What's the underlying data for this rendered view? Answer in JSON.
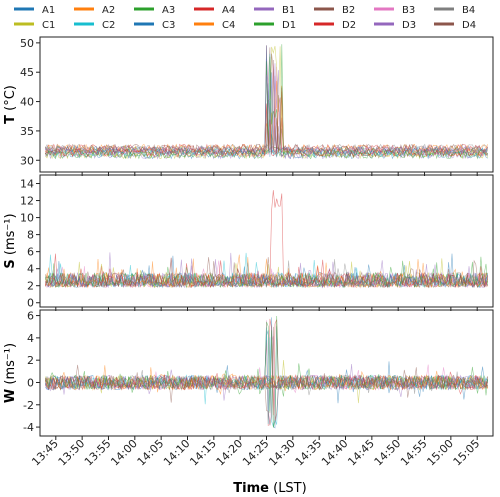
{
  "legend": {
    "entries": [
      {
        "name": "A1",
        "color": "#1f77b4"
      },
      {
        "name": "A2",
        "color": "#ff7f0e"
      },
      {
        "name": "A3",
        "color": "#2ca02c"
      },
      {
        "name": "A4",
        "color": "#d62728"
      },
      {
        "name": "B1",
        "color": "#9467bd"
      },
      {
        "name": "B2",
        "color": "#8c564b"
      },
      {
        "name": "B3",
        "color": "#e377c2"
      },
      {
        "name": "B4",
        "color": "#7f7f7f"
      },
      {
        "name": "C1",
        "color": "#bcbd22"
      },
      {
        "name": "C2",
        "color": "#17becf"
      },
      {
        "name": "C3",
        "color": "#1f77b4"
      },
      {
        "name": "C4",
        "color": "#ff7f0e"
      },
      {
        "name": "D1",
        "color": "#2ca02c"
      },
      {
        "name": "D2",
        "color": "#d62728"
      },
      {
        "name": "D3",
        "color": "#9467bd"
      },
      {
        "name": "D4",
        "color": "#8c564b"
      }
    ],
    "placement": "top"
  },
  "xaxis": {
    "title_bold": "Time",
    "title_rest": " (LST)",
    "ticks": [
      "13:45",
      "13:50",
      "13:55",
      "14:00",
      "14:05",
      "14:10",
      "14:15",
      "14:20",
      "14:25",
      "14:30",
      "14:35",
      "14:40",
      "14:45",
      "14:50",
      "14:55",
      "15:00",
      "15:05"
    ]
  },
  "chart_data": [
    {
      "type": "line",
      "panel": "T",
      "ylabel_bold": "T",
      "ylabel_rest": " (°C)",
      "ylim": [
        28,
        51
      ],
      "yticks": [
        "30",
        "35",
        "40",
        "45",
        "50"
      ],
      "series_names": "legend.entries",
      "baseline": 31.5,
      "noise": 1.4,
      "spike_window": [
        "14:25",
        "14:28"
      ],
      "spike_max": 50
    },
    {
      "type": "line",
      "panel": "S",
      "ylabel_bold": "S",
      "ylabel_rest": " (ms⁻¹)",
      "ylim": [
        -0.5,
        15
      ],
      "yticks": [
        "0",
        "2",
        "4",
        "6",
        "8",
        "10",
        "12",
        "14"
      ],
      "baseline": 1.8,
      "noise": 2.5,
      "peak": {
        "time": "14:27",
        "value": 14
      }
    },
    {
      "type": "line",
      "panel": "W",
      "ylabel_bold": "W",
      "ylabel_rest": " (ms⁻¹)",
      "ylim": [
        -4.8,
        6.5
      ],
      "yticks": [
        "-4",
        "-2",
        "0",
        "2",
        "4",
        "6"
      ],
      "baseline": 0,
      "noise": 1.3,
      "peak": {
        "time": "14:26",
        "value": 6
      },
      "trough": {
        "time": "14:28",
        "value": -4.2
      }
    }
  ]
}
